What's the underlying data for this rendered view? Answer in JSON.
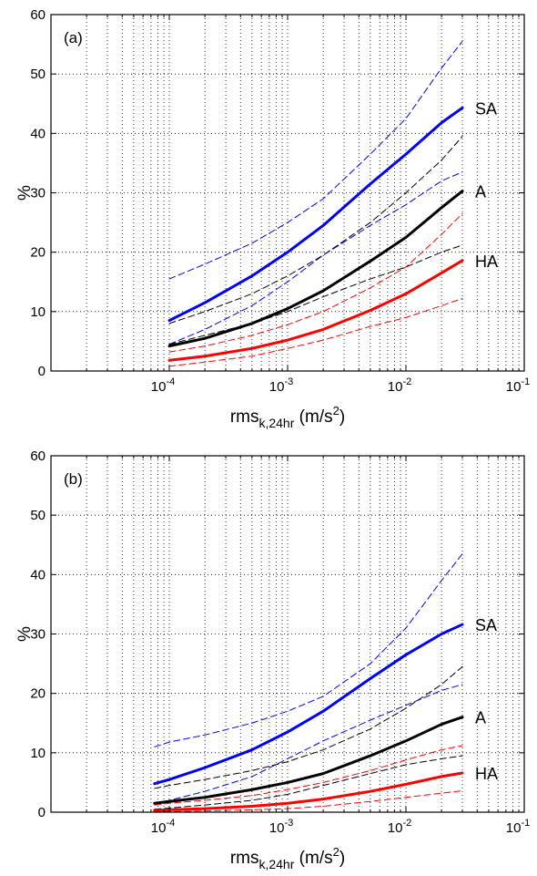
{
  "chart_data": [
    {
      "type": "line",
      "panel_label": "(a)",
      "xlabel": {
        "base": "rms",
        "subscript": "k,24hr",
        "unit_open": " (m/s",
        "unit_sup": "2",
        "unit_close": ")"
      },
      "ylabel": "%",
      "xscale": "log",
      "xlim": [
        1e-05,
        0.1
      ],
      "ylim": [
        0,
        60
      ],
      "yticks": [
        0,
        10,
        20,
        30,
        40,
        50,
        60
      ],
      "xtick_labels": [
        {
          "value": 0.0001,
          "base": "10",
          "exp": "-4"
        },
        {
          "value": 0.001,
          "base": "10",
          "exp": "-3"
        },
        {
          "value": 0.01,
          "base": "10",
          "exp": "-2"
        },
        {
          "value": 0.1,
          "base": "10",
          "exp": "-1"
        }
      ],
      "grid": true,
      "x": [
        0.0001,
        0.0002,
        0.0005,
        0.001,
        0.002,
        0.005,
        0.01,
        0.02,
        0.03
      ],
      "series": [
        {
          "name": "SA",
          "color": "#0000ff",
          "style": "solid",
          "width": 3,
          "label": true,
          "values": [
            8.5,
            11.5,
            16.0,
            20.0,
            24.5,
            31.5,
            36.5,
            41.8,
            44.3
          ]
        },
        {
          "color": "#0000ff",
          "style": "dashed",
          "width": 1,
          "values": [
            15.5,
            18.0,
            21.5,
            25.0,
            29.0,
            36.5,
            42.5,
            51.0,
            55.5
          ]
        },
        {
          "color": "#0000ff",
          "style": "dashed",
          "width": 1,
          "values": [
            4.5,
            7.0,
            11.0,
            15.0,
            19.5,
            24.5,
            28.0,
            32.0,
            33.5
          ]
        },
        {
          "name": "A",
          "color": "#000000",
          "style": "solid",
          "width": 3,
          "label": true,
          "values": [
            4.2,
            5.5,
            8.0,
            10.5,
            13.5,
            18.5,
            22.5,
            27.5,
            30.3
          ]
        },
        {
          "color": "#000000",
          "style": "dashed",
          "width": 1,
          "values": [
            8.0,
            10.0,
            13.0,
            16.0,
            19.5,
            25.0,
            30.0,
            35.5,
            39.5
          ]
        },
        {
          "color": "#000000",
          "style": "dashed",
          "width": 1,
          "values": [
            4.5,
            6.0,
            8.0,
            10.0,
            12.5,
            15.5,
            17.5,
            20.0,
            21.2
          ]
        },
        {
          "name": "HA",
          "color": "#ff0000",
          "style": "solid",
          "width": 3,
          "label": true,
          "values": [
            1.8,
            2.5,
            3.8,
            5.2,
            7.0,
            10.2,
            13.0,
            16.5,
            18.6
          ]
        },
        {
          "color": "#ff0000",
          "style": "dashed",
          "width": 1,
          "values": [
            3.2,
            4.2,
            6.0,
            7.8,
            10.0,
            14.0,
            17.5,
            23.0,
            26.5
          ]
        },
        {
          "color": "#ff0000",
          "style": "dashed",
          "width": 1,
          "values": [
            0.8,
            1.5,
            2.5,
            3.8,
            5.2,
            7.5,
            9.0,
            11.0,
            12.2
          ]
        }
      ]
    },
    {
      "type": "line",
      "panel_label": "(b)",
      "xlabel": {
        "base": "rms",
        "subscript": "k,24hr",
        "unit_open": " (m/s",
        "unit_sup": "2",
        "unit_close": ")"
      },
      "ylabel": "%",
      "xscale": "log",
      "xlim": [
        1e-05,
        0.1
      ],
      "ylim": [
        0,
        60
      ],
      "yticks": [
        0,
        10,
        20,
        30,
        40,
        50,
        60
      ],
      "xtick_labels": [
        {
          "value": 0.0001,
          "base": "10",
          "exp": "-4"
        },
        {
          "value": 0.001,
          "base": "10",
          "exp": "-3"
        },
        {
          "value": 0.01,
          "base": "10",
          "exp": "-2"
        },
        {
          "value": 0.1,
          "base": "10",
          "exp": "-1"
        }
      ],
      "grid": true,
      "x": [
        7.5e-05,
        0.0001,
        0.0002,
        0.0005,
        0.001,
        0.002,
        0.005,
        0.01,
        0.02,
        0.03
      ],
      "series": [
        {
          "name": "SA",
          "color": "#0000ff",
          "style": "solid",
          "width": 3,
          "label": true,
          "values": [
            4.8,
            5.5,
            7.5,
            10.5,
            13.5,
            17.0,
            22.5,
            26.5,
            30.0,
            31.6
          ]
        },
        {
          "color": "#0000ff",
          "style": "dashed",
          "width": 1,
          "values": [
            11.0,
            11.8,
            13.0,
            15.0,
            17.0,
            19.5,
            25.0,
            31.0,
            39.0,
            43.5
          ]
        },
        {
          "color": "#0000ff",
          "style": "dashed",
          "width": 1,
          "values": [
            1.5,
            2.0,
            3.5,
            6.0,
            9.0,
            12.0,
            15.5,
            18.0,
            20.5,
            21.5
          ]
        },
        {
          "name": "A",
          "color": "#000000",
          "style": "solid",
          "width": 3,
          "label": true,
          "values": [
            1.5,
            1.8,
            2.5,
            3.8,
            5.0,
            6.5,
            9.5,
            12.0,
            14.8,
            16.0
          ]
        },
        {
          "color": "#000000",
          "style": "dashed",
          "width": 1,
          "values": [
            4.0,
            4.5,
            5.5,
            7.0,
            8.5,
            10.5,
            14.0,
            17.5,
            21.5,
            24.5
          ]
        },
        {
          "color": "#000000",
          "style": "dashed",
          "width": 1,
          "values": [
            0.5,
            0.7,
            1.2,
            2.0,
            3.0,
            4.5,
            6.5,
            8.0,
            9.0,
            9.5
          ]
        },
        {
          "name": "HA",
          "color": "#ff0000",
          "style": "solid",
          "width": 3,
          "label": true,
          "values": [
            0.3,
            0.4,
            0.6,
            1.0,
            1.5,
            2.2,
            3.5,
            4.7,
            6.0,
            6.6
          ]
        },
        {
          "color": "#ff0000",
          "style": "dashed",
          "width": 1,
          "values": [
            1.2,
            1.5,
            2.0,
            2.8,
            3.8,
            5.0,
            7.0,
            8.8,
            10.5,
            11.2
          ]
        },
        {
          "color": "#ff0000",
          "style": "dashed",
          "width": 1,
          "values": [
            0.1,
            0.1,
            0.2,
            0.4,
            0.6,
            1.0,
            1.8,
            2.5,
            3.2,
            3.6
          ]
        }
      ]
    }
  ]
}
